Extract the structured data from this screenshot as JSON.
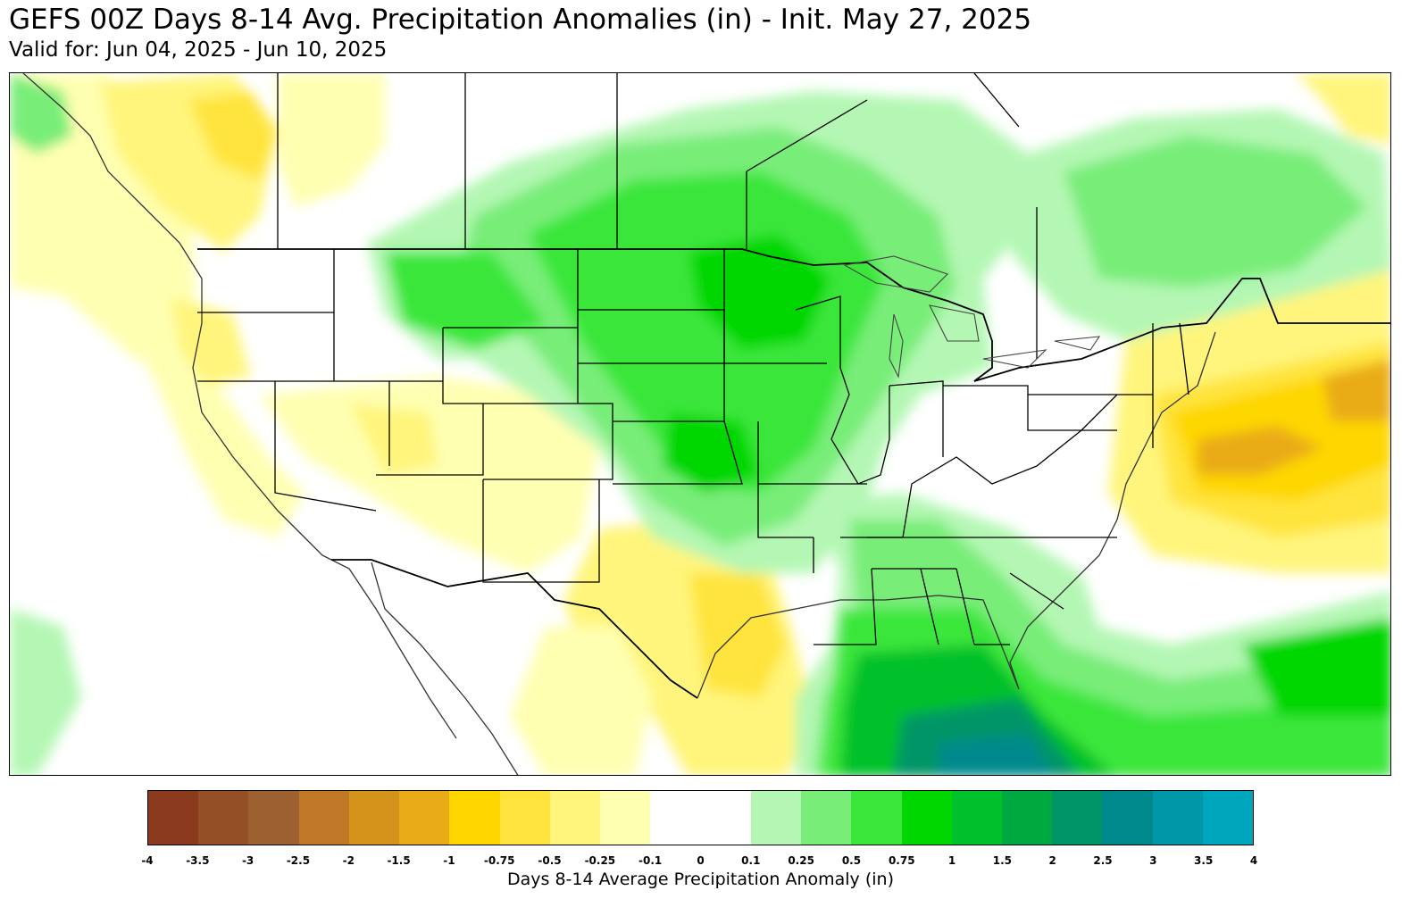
{
  "header": {
    "title": "GEFS 00Z Days 8-14 Avg. Precipitation Anomalies (in) - Init. May 27, 2025",
    "subtitle": "Valid for: Jun 04, 2025 - Jun 10, 2025"
  },
  "map": {
    "region": "Contiguous United States and surrounding areas",
    "field": "Days 8-14 average precipitation anomaly",
    "features": [
      "state-borders",
      "country-borders",
      "coastlines",
      "great-lakes"
    ],
    "anomaly_regions": [
      {
        "area": "Pacific Northwest coast",
        "level": "-0.25 to -1",
        "tone": "dry"
      },
      {
        "area": "Western Atlantic off New England",
        "level": "-1 to -2",
        "tone": "dry"
      },
      {
        "area": "Texas Gulf coast",
        "level": "-0.25 to -0.75",
        "tone": "dry"
      },
      {
        "area": "Northern Plains to Upper Midwest",
        "level": "0.5 to 1.5",
        "tone": "wet"
      },
      {
        "area": "Central Plains and Mississippi Valley",
        "level": "0.5 to 1.5",
        "tone": "wet"
      },
      {
        "area": "Eastern Gulf of Mexico and Florida",
        "level": "1 to 3",
        "tone": "wet"
      },
      {
        "area": "Southeastern Canada",
        "level": "0.1 to 0.75",
        "tone": "wet"
      }
    ]
  },
  "legend": {
    "label": "Days 8-14 Average Precipitation Anomaly (in)",
    "ticks": [
      "-4",
      "-3.5",
      "-3",
      "-2.5",
      "-2",
      "-1.5",
      "-1",
      "-0.75",
      "-0.5",
      "-0.25",
      "-0.1",
      "0",
      "0.1",
      "0.25",
      "0.5",
      "0.75",
      "1",
      "1.5",
      "2",
      "2.5",
      "3",
      "3.5",
      "4"
    ],
    "colors": [
      "#8c3a1e",
      "#954f26",
      "#9d6131",
      "#c07826",
      "#d4931a",
      "#e9ab18",
      "#fed700",
      "#ffe43e",
      "#fff57b",
      "#ffffb2",
      "#ffffff",
      "#ffffff",
      "#b4f7b4",
      "#78ed78",
      "#3ae63a",
      "#00d700",
      "#00c12c",
      "#00a93f",
      "#009566",
      "#00898c",
      "#0097a9",
      "#00a6bc"
    ]
  }
}
